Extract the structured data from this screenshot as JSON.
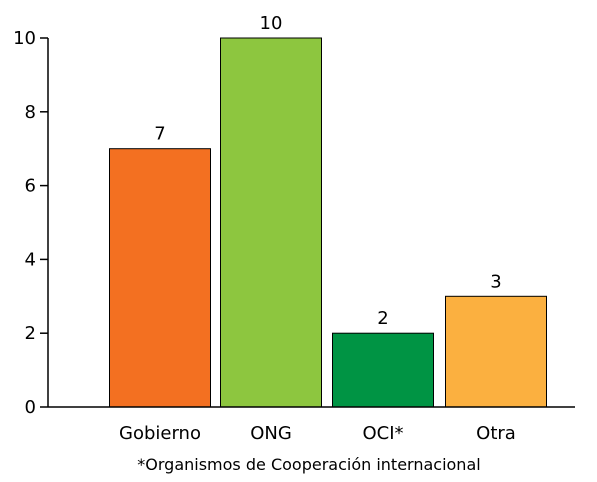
{
  "chart_data": {
    "type": "bar",
    "categories": [
      "Gobierno",
      "ONG",
      "OCI*",
      "Otra"
    ],
    "values": [
      7,
      10,
      2,
      3
    ],
    "data_labels": [
      "7",
      "10",
      "2",
      "3"
    ],
    "colors": [
      "#f37021",
      "#8dc63f",
      "#009444",
      "#fbb040"
    ],
    "yticks": [
      "0",
      "2",
      "4",
      "6",
      "8",
      "10"
    ],
    "ylim": [
      0,
      10
    ],
    "grid": false,
    "footnote": "*Organismos de Cooperación internacional"
  }
}
